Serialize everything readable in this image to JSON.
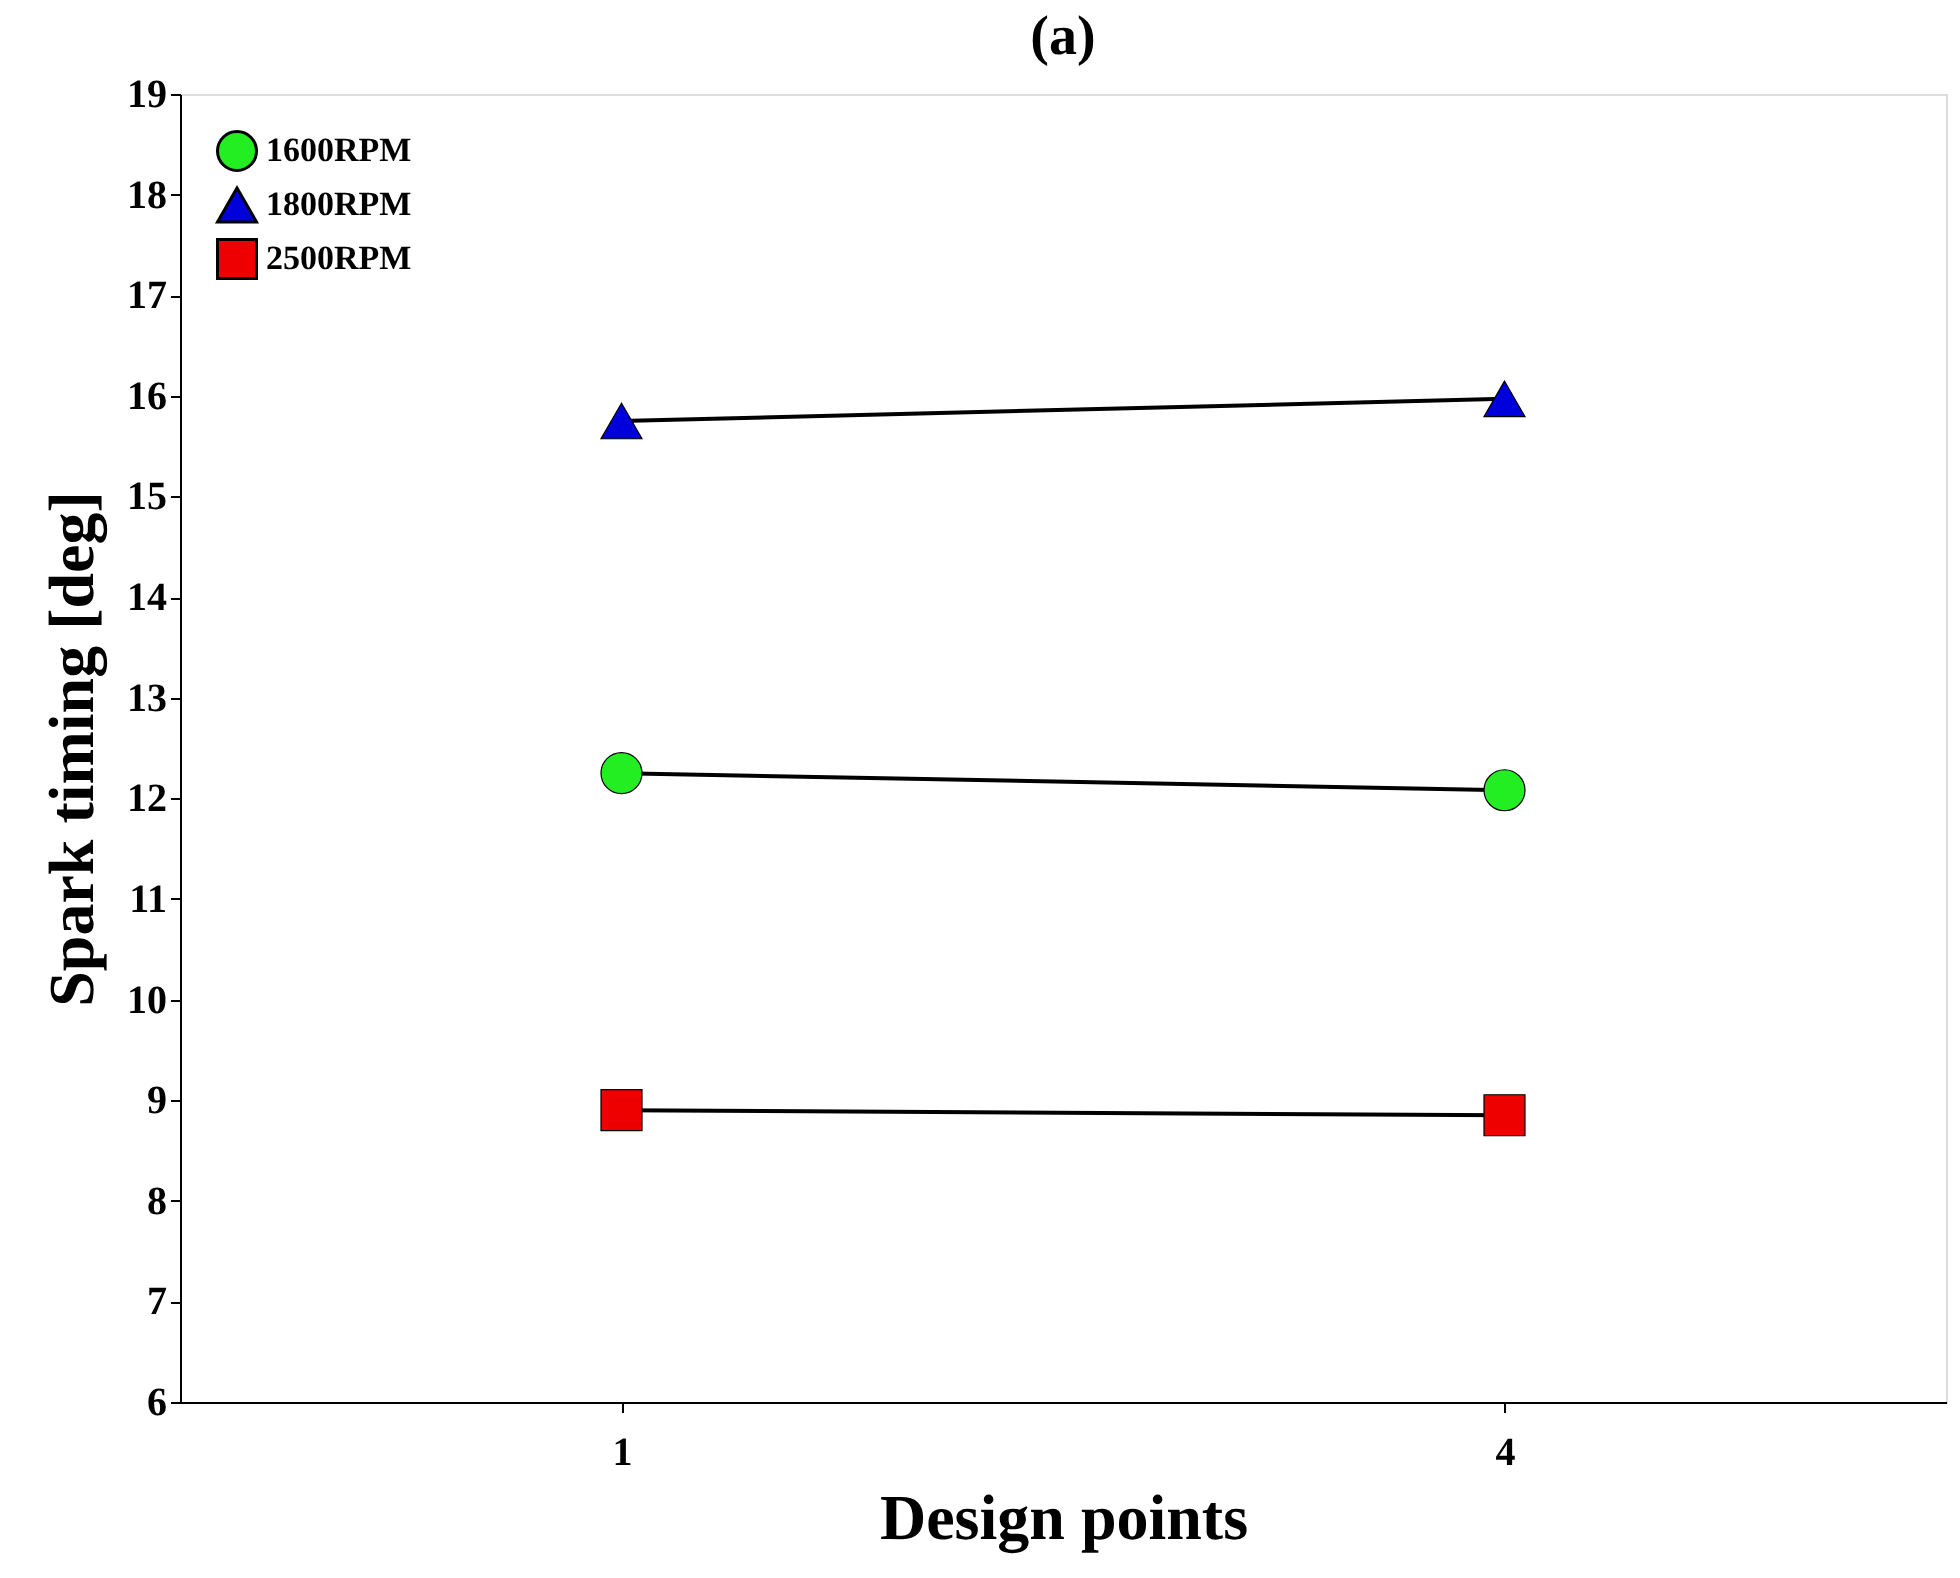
{
  "chart_data": {
    "type": "line",
    "title": "(a)",
    "xlabel": "Design points",
    "ylabel": "Spark timing [deg]",
    "categories": [
      "1",
      "4"
    ],
    "series": [
      {
        "name": "1600RPM",
        "color": "#22ee22",
        "marker": "circle",
        "values": [
          12.25,
          12.08
        ]
      },
      {
        "name": "1800RPM",
        "color": "#0000dd",
        "marker": "triangle",
        "values": [
          15.75,
          15.97
        ]
      },
      {
        "name": "2500RPM",
        "color": "#ee0000",
        "marker": "square",
        "values": [
          8.9,
          8.85
        ]
      }
    ],
    "ylim": [
      6,
      19
    ],
    "yticks": [
      6,
      7,
      8,
      9,
      10,
      11,
      12,
      13,
      14,
      15,
      16,
      17,
      18,
      19
    ],
    "grid": false,
    "legend": "top left",
    "line_style": "solid"
  }
}
